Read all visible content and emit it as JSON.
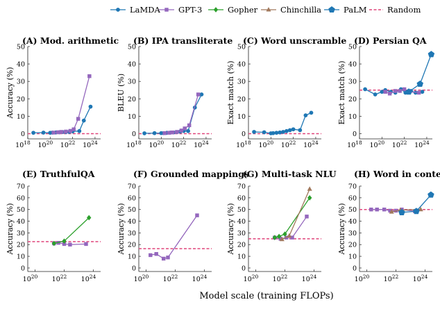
{
  "figure": {
    "xlabel": "Model scale (training FLOPs)",
    "legend": [
      {
        "name": "LaMDA",
        "color": "#1f77b4",
        "marker": "circle"
      },
      {
        "name": "GPT-3",
        "color": "#9467bd",
        "marker": "square"
      },
      {
        "name": "Gopher",
        "color": "#2ca02c",
        "marker": "diamond"
      },
      {
        "name": "Chinchilla",
        "color": "#a1785c",
        "marker": "triangle"
      },
      {
        "name": "PaLM",
        "color": "#1f77b4",
        "marker": "pentagon"
      },
      {
        "name": "Random",
        "color": "#e0457b",
        "marker": "dashed-line"
      }
    ]
  },
  "chart_data": [
    {
      "type": "line",
      "title": "(A) Mod. arithmetic",
      "ylabel": "Accuracy (%)",
      "xscale": "log",
      "xlim": [
        18,
        24.5
      ],
      "ylim": [
        -3,
        50
      ],
      "yticks": [
        0,
        10,
        20,
        30,
        40,
        50
      ],
      "xticks": [
        18,
        20,
        22,
        24
      ],
      "random": 0,
      "series": [
        {
          "name": "LaMDA",
          "x": [
            18.5,
            19.4,
            20.0,
            20.2,
            20.5,
            20.8,
            21.1,
            21.4,
            21.7,
            22.0,
            22.6,
            23.0,
            23.6
          ],
          "y": [
            0.5,
            0.6,
            0.5,
            0.6,
            0.7,
            0.8,
            0.9,
            0.9,
            1.0,
            1.3,
            1.5,
            7.5,
            15.5
          ]
        },
        {
          "name": "GPT-3",
          "x": [
            20.3,
            20.7,
            21.0,
            21.4,
            21.8,
            22.1,
            22.5,
            23.5
          ],
          "y": [
            0.6,
            0.8,
            1.0,
            1.2,
            1.6,
            2.5,
            8.5,
            33
          ]
        }
      ]
    },
    {
      "type": "line",
      "title": "(B) IPA transliterate",
      "ylabel": "BLEU (%)",
      "xscale": "log",
      "xlim": [
        18,
        24.5
      ],
      "ylim": [
        -3,
        50
      ],
      "yticks": [
        0,
        10,
        20,
        30,
        40,
        50
      ],
      "xticks": [
        18,
        20,
        22,
        24
      ],
      "random": 0,
      "series": [
        {
          "name": "LaMDA",
          "x": [
            18.5,
            19.4,
            20.0,
            20.2,
            20.5,
            20.8,
            21.1,
            21.4,
            21.7,
            22.0,
            22.4,
            23.0,
            23.6
          ],
          "y": [
            0.2,
            0.3,
            0.3,
            0.3,
            0.5,
            0.6,
            0.7,
            0.9,
            1.2,
            1.5,
            1.5,
            15,
            22.5
          ]
        },
        {
          "name": "GPT-3",
          "x": [
            20.3,
            20.7,
            21.0,
            21.4,
            21.8,
            22.1,
            22.5,
            23.3
          ],
          "y": [
            0.3,
            0.5,
            0.7,
            1.0,
            1.8,
            3.0,
            4.8,
            22.5
          ]
        }
      ]
    },
    {
      "type": "line",
      "title": "(C) Word unscramble",
      "ylabel": "Exact match (%)",
      "xscale": "log",
      "xlim": [
        18,
        24.5
      ],
      "ylim": [
        -3,
        50
      ],
      "yticks": [
        0,
        10,
        20,
        30,
        40,
        50
      ],
      "xticks": [
        18,
        20,
        22,
        24
      ],
      "random": 0,
      "series": [
        {
          "name": "LaMDA",
          "x": [
            18.5,
            19.4,
            20.0,
            20.2,
            20.5,
            20.8,
            21.1,
            21.4,
            21.7,
            22.0,
            22.6,
            23.1,
            23.6
          ],
          "y": [
            1.0,
            0.8,
            0.2,
            0.3,
            0.5,
            0.7,
            1.0,
            1.5,
            2.0,
            2.5,
            2.0,
            10.5,
            12
          ]
        }
      ]
    },
    {
      "type": "line",
      "title": "(D) Persian QA",
      "ylabel": "Exact match (%)",
      "xscale": "log",
      "xlim": [
        18,
        24.5
      ],
      "ylim": [
        -3,
        50
      ],
      "yticks": [
        0,
        10,
        20,
        30,
        40,
        50
      ],
      "xticks": [
        18,
        20,
        22,
        24
      ],
      "random": 25,
      "series": [
        {
          "name": "LaMDA",
          "x": [
            18.5,
            19.4,
            20.0,
            20.3,
            20.8,
            21.2,
            21.7,
            22.1,
            22.6,
            23.0,
            23.6
          ],
          "y": [
            25.5,
            22.5,
            24,
            25,
            24,
            23.5,
            25.5,
            23.5,
            24.5,
            23.5,
            24
          ]
        },
        {
          "name": "GPT-3",
          "x": [
            20.3,
            20.7,
            21.2,
            21.6,
            22.0,
            22.4,
            23.3
          ],
          "y": [
            24,
            23,
            24.5,
            24.5,
            25.5,
            24,
            23.5
          ]
        },
        {
          "name": "PaLM",
          "x": [
            22.4,
            23.4,
            24.4
          ],
          "y": [
            24,
            28.5,
            45.5
          ]
        }
      ]
    },
    {
      "type": "line",
      "title": "(E) TruthfulQA",
      "ylabel": "Accuracy (%)",
      "xscale": "log",
      "xlim": [
        19.5,
        24.5
      ],
      "ylim": [
        -3,
        70
      ],
      "yticks": [
        0,
        10,
        20,
        30,
        40,
        50,
        60,
        70
      ],
      "xticks": [
        20,
        22,
        24
      ],
      "random": 22.5,
      "series": [
        {
          "name": "GPT-3",
          "x": [
            21.3,
            21.6,
            22.0,
            22.4,
            23.5
          ],
          "y": [
            21,
            21.5,
            20.5,
            20,
            20.5
          ]
        },
        {
          "name": "Gopher",
          "x": [
            21.3,
            22.0,
            23.7
          ],
          "y": [
            21,
            23,
            43
          ]
        }
      ]
    },
    {
      "type": "line",
      "title": "(F) Grounded mappings",
      "ylabel": "Accuracy (%)",
      "xscale": "log",
      "xlim": [
        19.5,
        24.5
      ],
      "ylim": [
        -3,
        70
      ],
      "yticks": [
        0,
        10,
        20,
        30,
        40,
        50,
        60,
        70
      ],
      "xticks": [
        20,
        22,
        24
      ],
      "random": 16.5,
      "series": [
        {
          "name": "GPT-3",
          "x": [
            20.3,
            20.7,
            21.2,
            21.5,
            23.5
          ],
          "y": [
            11,
            12,
            8,
            9,
            45
          ]
        }
      ]
    },
    {
      "type": "line",
      "title": "(G) Multi-task NLU",
      "ylabel": "Accuracy (%)",
      "xscale": "log",
      "xlim": [
        19.5,
        24.5
      ],
      "ylim": [
        -3,
        70
      ],
      "yticks": [
        0,
        10,
        20,
        30,
        40,
        50,
        60,
        70
      ],
      "xticks": [
        20,
        22,
        24
      ],
      "random": 25,
      "series": [
        {
          "name": "GPT-3",
          "x": [
            21.3,
            21.7,
            22.1,
            22.5,
            23.5
          ],
          "y": [
            26,
            25,
            26,
            26,
            44
          ]
        },
        {
          "name": "Gopher",
          "x": [
            21.3,
            21.6,
            22.0,
            23.7
          ],
          "y": [
            26,
            27,
            29,
            60
          ]
        },
        {
          "name": "Chinchilla",
          "x": [
            21.8,
            22.3,
            23.7
          ],
          "y": [
            24.5,
            27.5,
            67.5
          ]
        }
      ]
    },
    {
      "type": "line",
      "title": "(H) Word in context",
      "ylabel": "Accuracy (%)",
      "xscale": "log",
      "xlim": [
        19.5,
        24.5
      ],
      "ylim": [
        -3,
        70
      ],
      "yticks": [
        0,
        10,
        20,
        30,
        40,
        50,
        60,
        70
      ],
      "xticks": [
        20,
        22,
        24
      ],
      "random": 50,
      "series": [
        {
          "name": "GPT-3",
          "x": [
            20.3,
            20.7,
            21.2,
            21.6,
            22.0,
            22.4,
            23.3
          ],
          "y": [
            50,
            50,
            50,
            49,
            49,
            50,
            48.5
          ]
        },
        {
          "name": "Chinchilla",
          "x": [
            21.7,
            22.3,
            23.7
          ],
          "y": [
            48,
            49.5,
            50
          ]
        },
        {
          "name": "PaLM",
          "x": [
            22.4,
            23.4,
            24.4
          ],
          "y": [
            47.5,
            48.5,
            62.5
          ]
        }
      ]
    }
  ]
}
